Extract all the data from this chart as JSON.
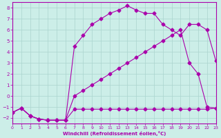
{
  "xlabel": "Windchill (Refroidissement éolien,°C)",
  "bg_color": "#cceee8",
  "grid_color": "#aad4ce",
  "line_color": "#aa00aa",
  "xlim": [
    0,
    23
  ],
  "ylim": [
    -2.5,
    8.5
  ],
  "xticks": [
    0,
    1,
    2,
    3,
    4,
    5,
    6,
    7,
    8,
    9,
    10,
    11,
    12,
    13,
    14,
    15,
    16,
    17,
    18,
    19,
    20,
    21,
    22,
    23
  ],
  "yticks": [
    -2,
    -1,
    0,
    1,
    2,
    3,
    4,
    5,
    6,
    7,
    8
  ],
  "line1_x": [
    0,
    1,
    2,
    3,
    4,
    5,
    6,
    7,
    8,
    9,
    10,
    11,
    12,
    13,
    14,
    15,
    16,
    17,
    18,
    19,
    20,
    21,
    22,
    23
  ],
  "line1_y": [
    -1.5,
    -1.1,
    -1.8,
    -2.1,
    -2.2,
    -2.2,
    -2.2,
    -1.2,
    -1.2,
    -1.2,
    -1.2,
    -1.2,
    -1.2,
    -1.2,
    -1.2,
    -1.2,
    -1.2,
    -1.2,
    -1.2,
    -1.2,
    -1.2,
    -1.2,
    -1.2,
    -1.1
  ],
  "line2_x": [
    0,
    1,
    2,
    3,
    4,
    5,
    6,
    7,
    8,
    9,
    10,
    11,
    12,
    13,
    14,
    15,
    16,
    17,
    18,
    19,
    20,
    21,
    22,
    23
  ],
  "line2_y": [
    -1.5,
    -1.1,
    -1.8,
    -2.1,
    -2.2,
    -2.2,
    -2.2,
    4.5,
    5.5,
    6.5,
    7.0,
    7.5,
    7.8,
    8.2,
    7.8,
    7.5,
    7.5,
    6.5,
    6.0,
    5.5,
    6.5,
    6.5,
    6.0,
    3.2
  ],
  "line3_x": [
    0,
    1,
    2,
    3,
    4,
    5,
    6,
    7,
    8,
    9,
    10,
    11,
    12,
    13,
    14,
    15,
    16,
    17,
    18,
    19,
    20,
    21,
    22,
    23
  ],
  "line3_y": [
    -1.5,
    -1.1,
    -1.8,
    -2.1,
    -2.2,
    -2.2,
    -2.2,
    0.0,
    0.5,
    1.0,
    1.5,
    2.0,
    2.5,
    3.0,
    3.5,
    4.0,
    4.5,
    5.0,
    5.5,
    6.0,
    3.0,
    2.0,
    -1.0,
    -1.1
  ],
  "marker": "D",
  "markersize": 2.5
}
